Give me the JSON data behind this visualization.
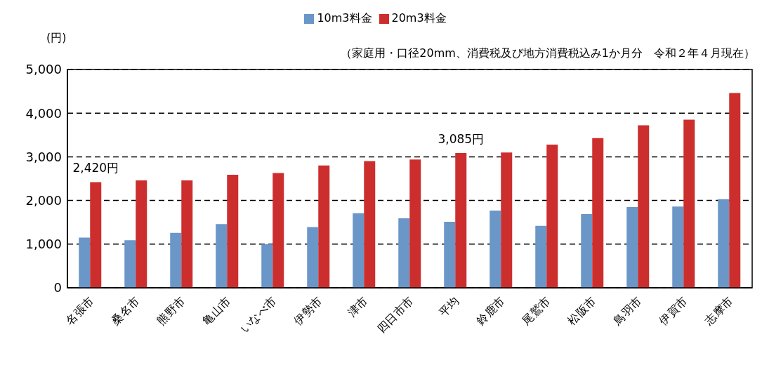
{
  "chart_data": {
    "type": "bar",
    "subtitle": "（家庭用・口径20mm、消費税及び地方消費税込み1か月分　令和２年４月現在）",
    "ylabel": "(円)",
    "categories": [
      "名張市",
      "桑名市",
      "熊野市",
      "亀山市",
      "いなべ市",
      "伊勢市",
      "津市",
      "四日市市",
      "平均",
      "鈴鹿市",
      "尾鷲市",
      "松阪市",
      "鳥羽市",
      "伊賀市",
      "志摩市"
    ],
    "series": [
      {
        "name": "10m3料金",
        "color": "#6a96c8",
        "values": [
          1150,
          1090,
          1260,
          1460,
          1000,
          1390,
          1710,
          1590,
          1510,
          1770,
          1420,
          1690,
          1850,
          1860,
          2030
        ]
      },
      {
        "name": "20m3料金",
        "color": "#cc2e2e",
        "values": [
          2420,
          2460,
          2460,
          2590,
          2630,
          2800,
          2900,
          2940,
          3085,
          3100,
          3280,
          3430,
          3720,
          3850,
          4460
        ],
        "value_labels": [
          "2,420円",
          null,
          null,
          null,
          null,
          null,
          null,
          null,
          "3,085円",
          null,
          null,
          null,
          null,
          null,
          null
        ]
      }
    ],
    "ylim": [
      0,
      5000
    ],
    "yticks": [
      {
        "value": 0,
        "label": "0"
      },
      {
        "value": 1000,
        "label": "1,000"
      },
      {
        "value": 2000,
        "label": "2,000"
      },
      {
        "value": 3000,
        "label": "3,000"
      },
      {
        "value": 4000,
        "label": "4,000"
      },
      {
        "value": 5000,
        "label": "5,000"
      }
    ],
    "grid": "y",
    "legend": "top"
  }
}
